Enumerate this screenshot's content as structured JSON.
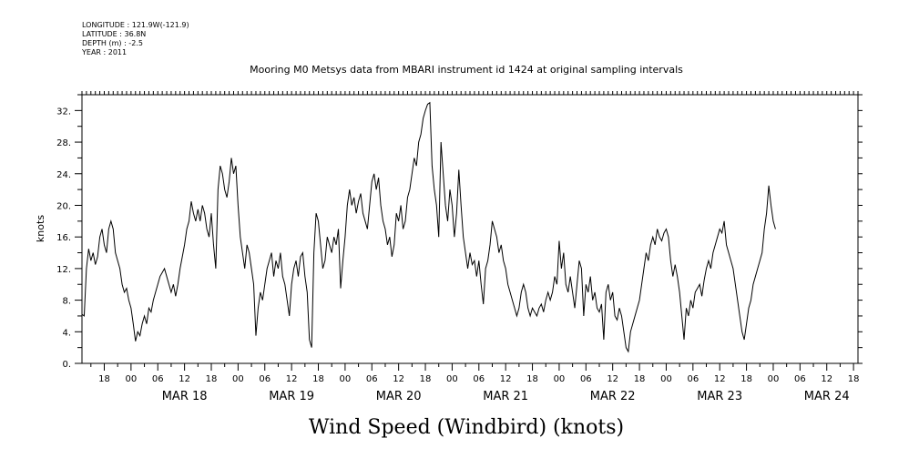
{
  "meta": {
    "longitude": "LONGITUDE : 121.9W(-121.9)",
    "latitude": "LATITUDE : 36.8N",
    "depth": "DEPTH (m) : -2.5",
    "year": "YEAR : 2011"
  },
  "chart_data": {
    "type": "line",
    "title": "Mooring M0 Metsys data from MBARI instrument id 1424 at original sampling intervals",
    "xlabel": "Wind Speed (Windbird) (knots)",
    "ylabel": "knots",
    "x_unit": "hours since MAR 18 00:00",
    "xlim": [
      -11,
      163
    ],
    "ylim": [
      0,
      34
    ],
    "y_ticks": [
      0,
      4,
      8,
      12,
      16,
      20,
      24,
      28,
      32
    ],
    "y_tick_labels": [
      "0.",
      "4.",
      "8.",
      "12.",
      "16.",
      "20.",
      "24.",
      "28.",
      "32."
    ],
    "hour_ticks": [
      "00",
      "06",
      "12",
      "18"
    ],
    "days": [
      "MAR 18",
      "MAR 19",
      "MAR 20",
      "MAR 21",
      "MAR 22",
      "MAR 23",
      "MAR 24"
    ],
    "grid": false,
    "series": [
      {
        "name": "",
        "points": [
          [
            -11,
            6.2
          ],
          [
            -10.5,
            6.0
          ],
          [
            -10,
            12.0
          ],
          [
            -9.5,
            14.5
          ],
          [
            -9,
            13.0
          ],
          [
            -8.5,
            14.0
          ],
          [
            -8,
            12.5
          ],
          [
            -7.5,
            13.5
          ],
          [
            -7,
            16.0
          ],
          [
            -6.5,
            17.0
          ],
          [
            -6,
            15.0
          ],
          [
            -5.5,
            14.0
          ],
          [
            -5,
            17.0
          ],
          [
            -4.5,
            18.0
          ],
          [
            -4,
            17.0
          ],
          [
            -3.5,
            14.0
          ],
          [
            -3,
            13.0
          ],
          [
            -2.5,
            12.0
          ],
          [
            -2,
            10.0
          ],
          [
            -1.5,
            9.0
          ],
          [
            -1,
            9.5
          ],
          [
            -0.5,
            8.0
          ],
          [
            0,
            7.0
          ],
          [
            0.5,
            5.0
          ],
          [
            1,
            2.8
          ],
          [
            1.5,
            4.0
          ],
          [
            2,
            3.5
          ],
          [
            2.5,
            5.0
          ],
          [
            3,
            6.0
          ],
          [
            3.5,
            5.0
          ],
          [
            4,
            7.0
          ],
          [
            4.5,
            6.5
          ],
          [
            5,
            8.0
          ],
          [
            5.5,
            9.0
          ],
          [
            6,
            10.0
          ],
          [
            6.5,
            11.0
          ],
          [
            7,
            11.5
          ],
          [
            7.5,
            12.0
          ],
          [
            8,
            11.0
          ],
          [
            8.5,
            10.0
          ],
          [
            9,
            9.0
          ],
          [
            9.5,
            10.0
          ],
          [
            10,
            8.5
          ],
          [
            10.5,
            10.0
          ],
          [
            11,
            12.0
          ],
          [
            11.5,
            13.5
          ],
          [
            12,
            15.0
          ],
          [
            12.5,
            17.0
          ],
          [
            13,
            18.0
          ],
          [
            13.5,
            20.5
          ],
          [
            14,
            19.0
          ],
          [
            14.5,
            18.0
          ],
          [
            15,
            19.5
          ],
          [
            15.5,
            18.0
          ],
          [
            16,
            20.0
          ],
          [
            16.5,
            19.0
          ],
          [
            17,
            17.0
          ],
          [
            17.5,
            16.0
          ],
          [
            18,
            19.0
          ],
          [
            18.5,
            15.0
          ],
          [
            19,
            12.0
          ],
          [
            19.5,
            22.0
          ],
          [
            20,
            25.0
          ],
          [
            20.5,
            24.0
          ],
          [
            21,
            22.0
          ],
          [
            21.5,
            21.0
          ],
          [
            22,
            23.0
          ],
          [
            22.5,
            26.0
          ],
          [
            23,
            24.0
          ],
          [
            23.5,
            25.0
          ],
          [
            24,
            20.0
          ],
          [
            24.5,
            16.0
          ],
          [
            25,
            14.0
          ],
          [
            25.5,
            12.0
          ],
          [
            26,
            15.0
          ],
          [
            26.5,
            14.0
          ],
          [
            27,
            12.0
          ],
          [
            27.5,
            10.0
          ],
          [
            28,
            3.5
          ],
          [
            28.5,
            7.0
          ],
          [
            29,
            9.0
          ],
          [
            29.5,
            8.0
          ],
          [
            30,
            10.0
          ],
          [
            30.5,
            12.0
          ],
          [
            31,
            13.0
          ],
          [
            31.5,
            14.0
          ],
          [
            32,
            11.0
          ],
          [
            32.5,
            13.0
          ],
          [
            33,
            12.0
          ],
          [
            33.5,
            14.0
          ],
          [
            34,
            11.0
          ],
          [
            34.5,
            10.0
          ],
          [
            35,
            8.0
          ],
          [
            35.5,
            6.0
          ],
          [
            36,
            10.0
          ],
          [
            36.5,
            12.0
          ],
          [
            37,
            13.0
          ],
          [
            37.5,
            11.0
          ],
          [
            38,
            13.5
          ],
          [
            38.5,
            14.0
          ],
          [
            39,
            11.0
          ],
          [
            39.5,
            9.0
          ],
          [
            40,
            3.0
          ],
          [
            40.5,
            2.0
          ],
          [
            41,
            14.0
          ],
          [
            41.5,
            19.0
          ],
          [
            42,
            18.0
          ],
          [
            42.5,
            15.0
          ],
          [
            43,
            12.0
          ],
          [
            43.5,
            13.0
          ],
          [
            44,
            16.0
          ],
          [
            44.5,
            15.0
          ],
          [
            45,
            14.0
          ],
          [
            45.5,
            16.0
          ],
          [
            46,
            15.0
          ],
          [
            46.5,
            17.0
          ],
          [
            47,
            9.5
          ],
          [
            47.5,
            13.0
          ],
          [
            48,
            16.0
          ],
          [
            48.5,
            20.0
          ],
          [
            49,
            22.0
          ],
          [
            49.5,
            20.0
          ],
          [
            50,
            21.0
          ],
          [
            50.5,
            19.0
          ],
          [
            51,
            20.5
          ],
          [
            51.5,
            21.5
          ],
          [
            52,
            19.0
          ],
          [
            52.5,
            18.0
          ],
          [
            53,
            17.0
          ],
          [
            53.5,
            20.0
          ],
          [
            54,
            23.0
          ],
          [
            54.5,
            24.0
          ],
          [
            55,
            22.0
          ],
          [
            55.5,
            23.5
          ],
          [
            56,
            20.0
          ],
          [
            56.5,
            18.0
          ],
          [
            57,
            17.0
          ],
          [
            57.5,
            15.0
          ],
          [
            58,
            16.0
          ],
          [
            58.5,
            13.5
          ],
          [
            59,
            15.0
          ],
          [
            59.5,
            19.0
          ],
          [
            60,
            18.0
          ],
          [
            60.5,
            20.0
          ],
          [
            61,
            17.0
          ],
          [
            61.5,
            18.0
          ],
          [
            62,
            21.0
          ],
          [
            62.5,
            22.0
          ],
          [
            63,
            24.0
          ],
          [
            63.5,
            26.0
          ],
          [
            64,
            25.0
          ],
          [
            64.5,
            28.0
          ],
          [
            65,
            29.0
          ],
          [
            65.5,
            31.0
          ],
          [
            66,
            32.0
          ],
          [
            66.5,
            32.8
          ],
          [
            67,
            33.0
          ],
          [
            67.5,
            25.0
          ],
          [
            68,
            22.0
          ],
          [
            68.5,
            20.0
          ],
          [
            69,
            16.0
          ],
          [
            69.5,
            28.0
          ],
          [
            70,
            24.0
          ],
          [
            70.5,
            20.0
          ],
          [
            71,
            18.0
          ],
          [
            71.5,
            22.0
          ],
          [
            72,
            20.0
          ],
          [
            72.5,
            16.0
          ],
          [
            73,
            19.0
          ],
          [
            73.5,
            24.5
          ],
          [
            74,
            20.0
          ],
          [
            74.5,
            16.0
          ],
          [
            75,
            14.0
          ],
          [
            75.5,
            12.0
          ],
          [
            76,
            14.0
          ],
          [
            76.5,
            12.5
          ],
          [
            77,
            13.0
          ],
          [
            77.5,
            11.0
          ],
          [
            78,
            13.0
          ],
          [
            78.5,
            10.0
          ],
          [
            79,
            7.5
          ],
          [
            79.5,
            12.0
          ],
          [
            80,
            13.0
          ],
          [
            80.5,
            15.0
          ],
          [
            81,
            18.0
          ],
          [
            81.5,
            17.0
          ],
          [
            82,
            16.0
          ],
          [
            82.5,
            14.0
          ],
          [
            83,
            15.0
          ],
          [
            83.5,
            13.0
          ],
          [
            84,
            12.0
          ],
          [
            84.5,
            10.0
          ],
          [
            85,
            9.0
          ],
          [
            85.5,
            8.0
          ],
          [
            86,
            7.0
          ],
          [
            86.5,
            6.0
          ],
          [
            87,
            7.0
          ],
          [
            87.5,
            9.0
          ],
          [
            88,
            10.0
          ],
          [
            88.5,
            9.0
          ],
          [
            89,
            7.0
          ],
          [
            89.5,
            6.0
          ],
          [
            90,
            7.0
          ],
          [
            90.5,
            6.5
          ],
          [
            91,
            6.0
          ],
          [
            91.5,
            7.0
          ],
          [
            92,
            7.5
          ],
          [
            92.5,
            6.5
          ],
          [
            93,
            8.0
          ],
          [
            93.5,
            9.0
          ],
          [
            94,
            8.0
          ],
          [
            94.5,
            9.0
          ],
          [
            95,
            11.0
          ],
          [
            95.5,
            10.0
          ],
          [
            96,
            15.5
          ],
          [
            96.5,
            12.0
          ],
          [
            97,
            14.0
          ],
          [
            97.5,
            10.0
          ],
          [
            98,
            9.0
          ],
          [
            98.5,
            11.0
          ],
          [
            99,
            9.0
          ],
          [
            99.5,
            7.0
          ],
          [
            100,
            10.0
          ],
          [
            100.5,
            13.0
          ],
          [
            101,
            12.0
          ],
          [
            101.5,
            6.0
          ],
          [
            102,
            10.0
          ],
          [
            102.5,
            9.0
          ],
          [
            103,
            11.0
          ],
          [
            103.5,
            8.0
          ],
          [
            104,
            9.0
          ],
          [
            104.5,
            7.0
          ],
          [
            105,
            6.5
          ],
          [
            105.5,
            7.5
          ],
          [
            106,
            3.0
          ],
          [
            106.5,
            9.0
          ],
          [
            107,
            10.0
          ],
          [
            107.5,
            8.0
          ],
          [
            108,
            9.0
          ],
          [
            108.5,
            6.0
          ],
          [
            109,
            5.5
          ],
          [
            109.5,
            7.0
          ],
          [
            110,
            6.0
          ],
          [
            110.5,
            4.0
          ],
          [
            111,
            2.0
          ],
          [
            111.5,
            1.5
          ],
          [
            112,
            4.0
          ],
          [
            112.5,
            5.0
          ],
          [
            113,
            6.0
          ],
          [
            113.5,
            7.0
          ],
          [
            114,
            8.0
          ],
          [
            114.5,
            10.0
          ],
          [
            115,
            12.0
          ],
          [
            115.5,
            14.0
          ],
          [
            116,
            13.0
          ],
          [
            116.5,
            15.0
          ],
          [
            117,
            16.0
          ],
          [
            117.5,
            15.0
          ],
          [
            118,
            17.0
          ],
          [
            118.5,
            16.0
          ],
          [
            119,
            15.5
          ],
          [
            119.5,
            16.5
          ],
          [
            120,
            17.0
          ],
          [
            120.5,
            16.0
          ],
          [
            121,
            13.0
          ],
          [
            121.5,
            11.0
          ],
          [
            122,
            12.5
          ],
          [
            122.5,
            11.0
          ],
          [
            123,
            9.0
          ],
          [
            123.5,
            6.0
          ],
          [
            124,
            3.0
          ],
          [
            124.5,
            7.0
          ],
          [
            125,
            6.0
          ],
          [
            125.5,
            8.0
          ],
          [
            126,
            7.0
          ],
          [
            126.5,
            9.0
          ],
          [
            127,
            9.5
          ],
          [
            127.5,
            10.0
          ],
          [
            128,
            8.5
          ],
          [
            128.5,
            10.5
          ],
          [
            129,
            12.0
          ],
          [
            129.5,
            13.0
          ],
          [
            130,
            12.0
          ],
          [
            130.5,
            14.0
          ],
          [
            131,
            15.0
          ],
          [
            131.5,
            16.0
          ],
          [
            132,
            17.0
          ],
          [
            132.5,
            16.5
          ],
          [
            133,
            18.0
          ],
          [
            133.5,
            15.0
          ],
          [
            134,
            14.0
          ],
          [
            134.5,
            13.0
          ],
          [
            135,
            12.0
          ],
          [
            135.5,
            10.0
          ],
          [
            136,
            8.0
          ],
          [
            136.5,
            6.0
          ],
          [
            137,
            4.0
          ],
          [
            137.5,
            3.0
          ],
          [
            138,
            5.0
          ],
          [
            138.5,
            7.0
          ],
          [
            139,
            8.0
          ],
          [
            139.5,
            10.0
          ],
          [
            140,
            11.0
          ],
          [
            140.5,
            12.0
          ],
          [
            141,
            13.0
          ],
          [
            141.5,
            14.0
          ],
          [
            142,
            17.0
          ],
          [
            142.5,
            19.0
          ],
          [
            143,
            22.5
          ],
          [
            143.5,
            20.0
          ],
          [
            144,
            18.0
          ],
          [
            144.5,
            17.0
          ]
        ]
      }
    ]
  }
}
